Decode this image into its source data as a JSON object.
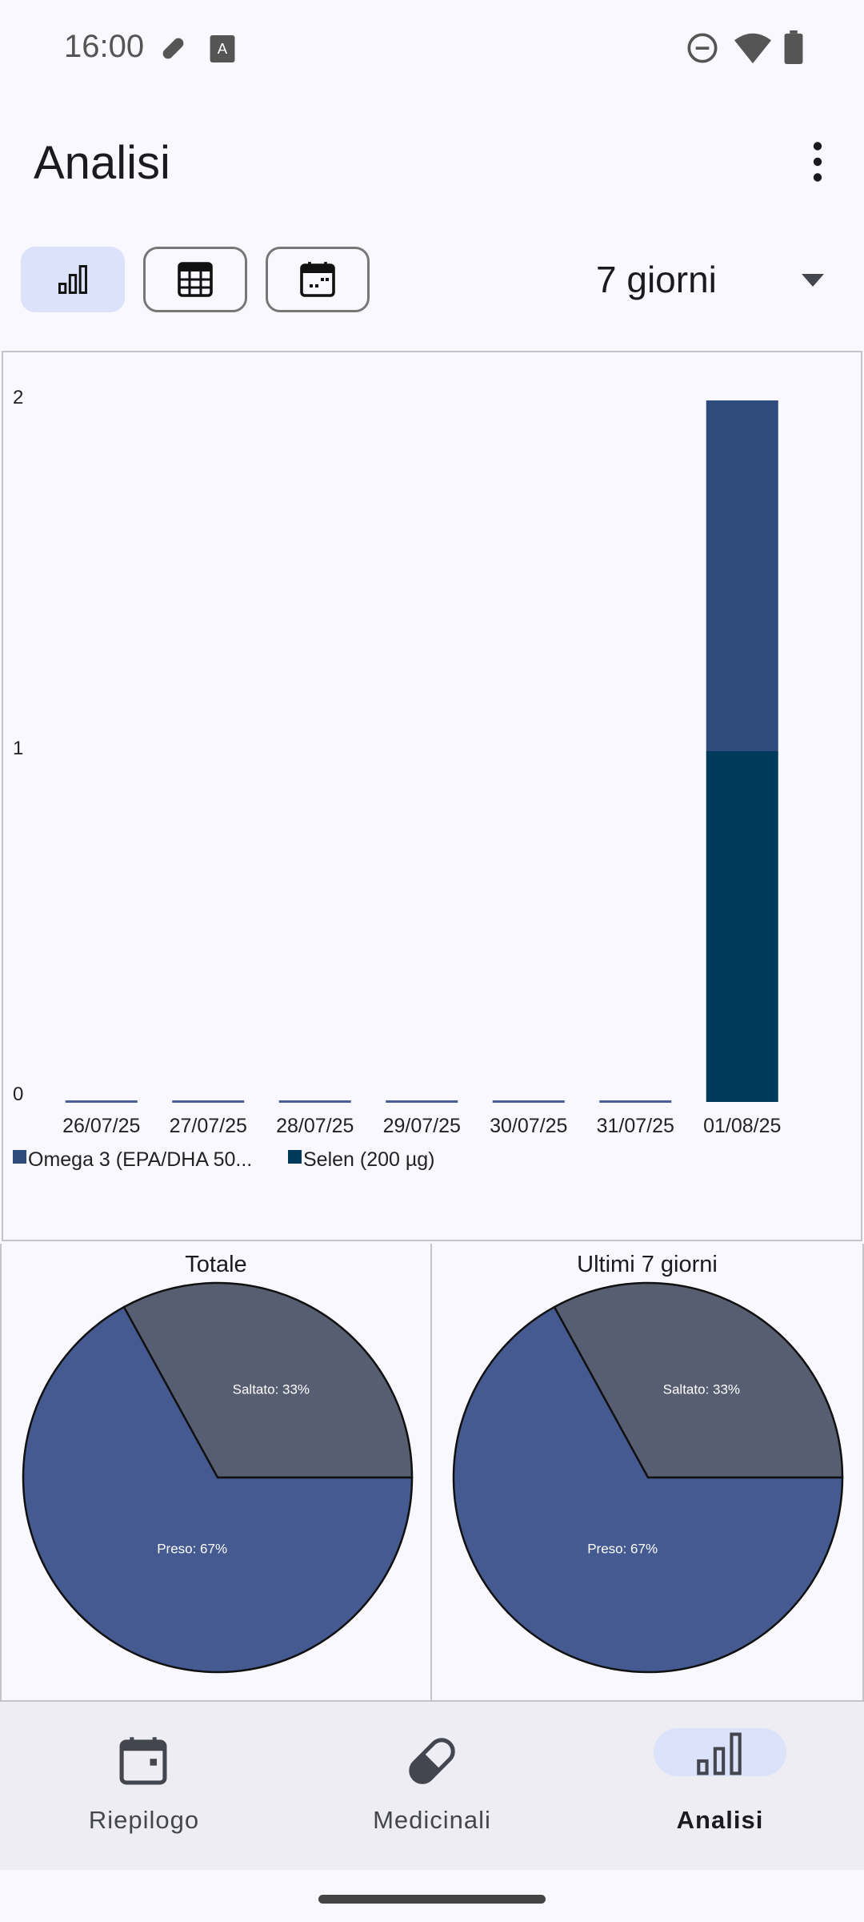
{
  "status": {
    "time": "16:00"
  },
  "header": {
    "title": "Analisi"
  },
  "toolbar": {
    "range": "7 giorni"
  },
  "chart_data": {
    "type": "bar",
    "stacked": true,
    "categories": [
      "26/07/25",
      "27/07/25",
      "28/07/25",
      "29/07/25",
      "30/07/25",
      "31/07/25",
      "01/08/25"
    ],
    "series": [
      {
        "name": "Selen (200 µg)",
        "color": "#003a5a",
        "values": [
          0,
          0,
          0,
          0,
          0,
          0,
          1
        ]
      },
      {
        "name": "Omega 3 (EPA/DHA 50...",
        "color": "#2f4a7c",
        "values": [
          0,
          0,
          0,
          0,
          0,
          0,
          1
        ]
      }
    ],
    "legend": [
      "Omega 3 (EPA/DHA 50...",
      "Selen (200 µg)"
    ],
    "yticks": [
      "0",
      "1",
      "2"
    ],
    "ylim": [
      0,
      2
    ]
  },
  "pies": [
    {
      "title": "Totale",
      "slices": [
        {
          "label": "Saltato: 33%",
          "value": 33,
          "color": "#585e72"
        },
        {
          "label": "Preso: 67%",
          "value": 67,
          "color": "#455a91"
        }
      ]
    },
    {
      "title": "Ultimi 7 giorni",
      "slices": [
        {
          "label": "Saltato: 33%",
          "value": 33,
          "color": "#585e72"
        },
        {
          "label": "Preso: 67%",
          "value": 67,
          "color": "#455a91"
        }
      ]
    }
  ],
  "nav": [
    {
      "label": "Riepilogo"
    },
    {
      "label": "Medicinali"
    },
    {
      "label": "Analisi"
    }
  ]
}
